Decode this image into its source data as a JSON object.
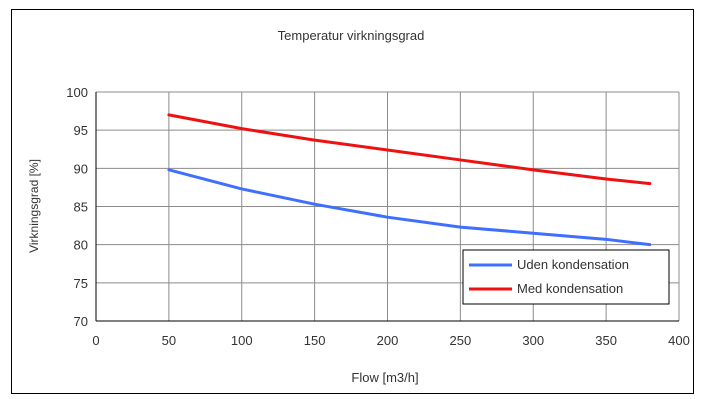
{
  "chart_data": {
    "type": "line",
    "title": "Temperatur virkningsgrad",
    "xlabel": "Flow [m3/h]",
    "ylabel": "Virkningsgrad [%]",
    "xlim": [
      0,
      400
    ],
    "ylim": [
      70,
      100
    ],
    "xticks": [
      0,
      50,
      100,
      150,
      200,
      250,
      300,
      350,
      400
    ],
    "yticks": [
      70,
      75,
      80,
      85,
      90,
      95,
      100
    ],
    "grid": true,
    "legend_position": "bottom-right",
    "series": [
      {
        "name": "Uden kondensation",
        "color": "#3f6fff",
        "x": [
          50,
          100,
          150,
          200,
          250,
          300,
          350,
          380
        ],
        "y": [
          89.8,
          87.3,
          85.3,
          83.6,
          82.3,
          81.5,
          80.7,
          80.0
        ]
      },
      {
        "name": "Med kondensation",
        "color": "#ee1111",
        "x": [
          50,
          100,
          150,
          200,
          250,
          300,
          350,
          380
        ],
        "y": [
          97.0,
          95.2,
          93.7,
          92.4,
          91.1,
          89.8,
          88.6,
          88.0
        ]
      }
    ]
  }
}
